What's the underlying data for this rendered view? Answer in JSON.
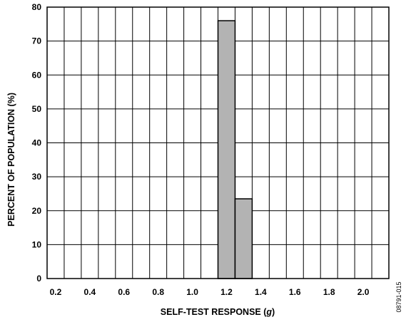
{
  "chart_data": {
    "type": "bar",
    "x_ticks": [
      "0.2",
      "0.4",
      "0.6",
      "0.8",
      "1.0",
      "1.2",
      "1.4",
      "1.6",
      "1.8",
      "2.0"
    ],
    "y_ticks": [
      "0",
      "10",
      "20",
      "30",
      "40",
      "50",
      "60",
      "70",
      "80"
    ],
    "bins": [
      {
        "from": 1.15,
        "to": 1.25,
        "value": 76
      },
      {
        "from": 1.25,
        "to": 1.35,
        "value": 23.5
      }
    ],
    "xlabel_main": "SELF-TEST RESPONSE (",
    "xlabel_unit": "g",
    "xlabel_end": ")",
    "ylabel": "PERCENT OF POPULATION (%)",
    "xlim": [
      0.15,
      2.15
    ],
    "ylim": [
      0,
      80
    ],
    "x_grid_step": 0.1,
    "y_grid_step": 10,
    "grid": true,
    "bar_color": "#b3b3b3",
    "figure_id": "08791-015"
  }
}
